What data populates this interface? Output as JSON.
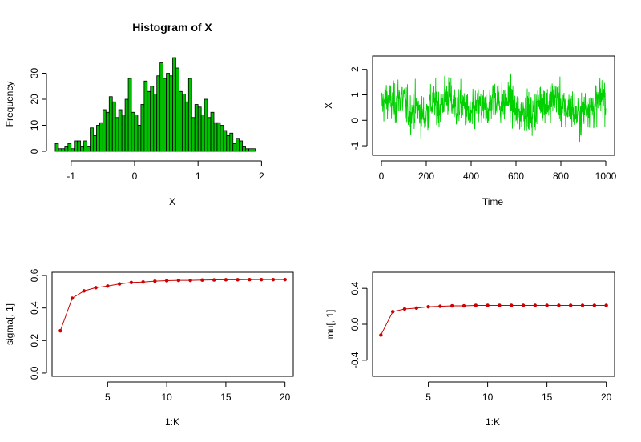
{
  "chart_data": [
    {
      "type": "bar",
      "title": "Histogram of X",
      "xlabel": "X",
      "ylabel": "Frequency",
      "xlim": [
        -1.3,
        2.5
      ],
      "ylim": [
        0,
        36
      ],
      "x_ticks": [
        -1,
        0,
        1,
        2
      ],
      "y_ticks": [
        0,
        10,
        20,
        30
      ],
      "bin_start": -1.25,
      "bin_width": 0.05,
      "bar_color": "#00c000",
      "values": [
        3,
        1,
        1,
        2,
        3,
        1,
        4,
        4,
        2,
        4,
        2,
        9,
        6,
        10,
        11,
        16,
        15,
        21,
        19,
        13,
        16,
        14,
        20,
        28,
        15,
        14,
        10,
        18,
        27,
        23,
        25,
        22,
        29,
        34,
        28,
        30,
        29,
        36,
        32,
        23,
        22,
        19,
        28,
        13,
        18,
        17,
        14,
        20,
        13,
        15,
        11,
        11,
        10,
        8,
        6,
        7,
        3,
        5,
        4,
        2,
        1,
        1,
        1
      ],
      "grid": false
    },
    {
      "type": "line",
      "title": "",
      "xlabel": "Time",
      "ylabel": "X",
      "xlim": [
        0,
        1000
      ],
      "ylim": [
        -1.25,
        2.4
      ],
      "x_ticks": [
        0,
        200,
        400,
        600,
        800,
        1000
      ],
      "y_ticks": [
        -1,
        0,
        1,
        2
      ],
      "series": [
        {
          "color": "#00d000",
          "summary": {
            "n": 1000,
            "min": -1.2,
            "max": 2.4,
            "mean": 0.55
          }
        }
      ],
      "grid": false
    },
    {
      "type": "line",
      "title": "",
      "xlabel": "1:K",
      "ylabel": "sigma[, 1]",
      "xlim": [
        0.3,
        20.7
      ],
      "ylim": [
        -0.02,
        0.62
      ],
      "x_ticks": [
        5,
        10,
        15,
        20
      ],
      "y_ticks": [
        0.0,
        0.2,
        0.4,
        0.6
      ],
      "y_tick_labels": [
        "0.0",
        "0.2",
        "0.4",
        "0.6"
      ],
      "x": [
        1,
        2,
        3,
        4,
        5,
        6,
        7,
        8,
        9,
        10,
        11,
        12,
        13,
        14,
        15,
        16,
        17,
        18,
        19,
        20
      ],
      "series": [
        {
          "color": "#cc0000",
          "values": [
            0.26,
            0.46,
            0.505,
            0.525,
            0.535,
            0.548,
            0.557,
            0.56,
            0.565,
            0.568,
            0.57,
            0.57,
            0.572,
            0.573,
            0.574,
            0.574,
            0.575,
            0.575,
            0.575,
            0.575
          ]
        }
      ],
      "grid": false
    },
    {
      "type": "line",
      "title": "",
      "xlabel": "1:K",
      "ylabel": "mu[, 1]",
      "xlim": [
        0.3,
        20.7
      ],
      "ylim": [
        -0.58,
        0.58
      ],
      "x_ticks": [
        5,
        10,
        15,
        20
      ],
      "y_ticks": [
        -0.4,
        0.0,
        0.4
      ],
      "y_tick_labels": [
        "-0.4",
        "0.0",
        "0.4"
      ],
      "x": [
        1,
        2,
        3,
        4,
        5,
        6,
        7,
        8,
        9,
        10,
        11,
        12,
        13,
        14,
        15,
        16,
        17,
        18,
        19,
        20
      ],
      "series": [
        {
          "color": "#cc0000",
          "values": [
            -0.12,
            0.14,
            0.17,
            0.18,
            0.195,
            0.2,
            0.205,
            0.205,
            0.21,
            0.21,
            0.21,
            0.21,
            0.21,
            0.21,
            0.21,
            0.21,
            0.21,
            0.21,
            0.21,
            0.21
          ]
        }
      ],
      "grid": false
    }
  ]
}
